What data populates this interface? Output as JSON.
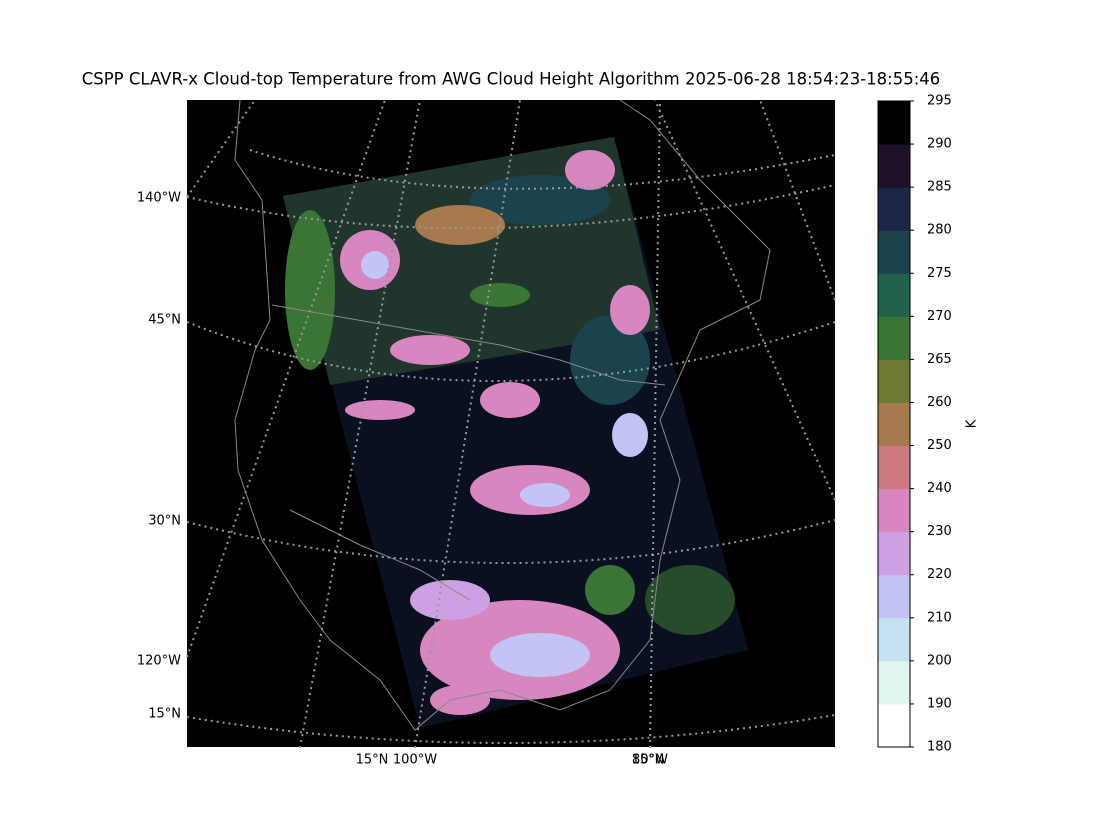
{
  "title": "CSPP CLAVR-x Cloud-top Temperature from AWG Cloud Height Algorithm 2025-06-28 18:54:23-18:55:46",
  "left_labels": [
    "140°W",
    "45°N",
    "30°N",
    "120°W",
    "15°N"
  ],
  "bottom_labels": [
    "15°N",
    "100°W",
    "80°W",
    "15°N"
  ],
  "colorbar": {
    "label": "K",
    "ticks": [
      180,
      190,
      200,
      210,
      220,
      230,
      240,
      250,
      260,
      265,
      270,
      275,
      280,
      285,
      290,
      295
    ],
    "colors": [
      "#ffffff",
      "#dff5ef",
      "#c5e2f2",
      "#c3c3f5",
      "#cca0e3",
      "#d786c0",
      "#cb7a7f",
      "#a67a4c",
      "#6e7c33",
      "#3b7535",
      "#20614c",
      "#1a434e",
      "#1d2547",
      "#1c1127",
      "#000000"
    ]
  }
}
